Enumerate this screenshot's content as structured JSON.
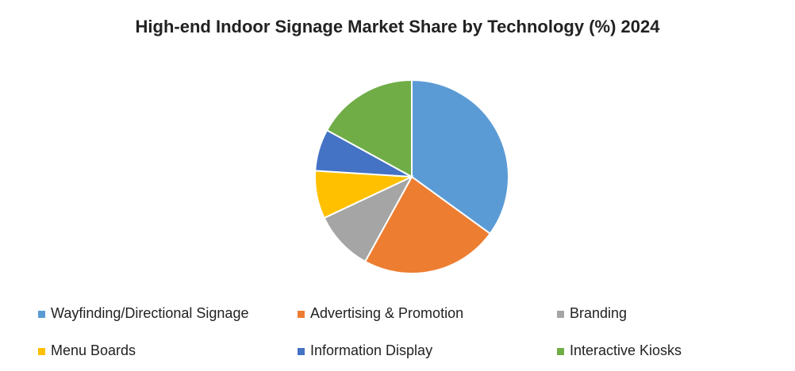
{
  "chart_data": {
    "type": "pie",
    "title": "High-end Indoor Signage Market Share by Technology (%) 2024",
    "categories": [
      "Wayfinding/Directional Signage",
      "Advertising & Promotion",
      "Branding",
      "Menu Boards",
      "Information Display",
      "Interactive Kiosks"
    ],
    "values": [
      35,
      23,
      10,
      8,
      7,
      17
    ],
    "colors": [
      "#5b9bd5",
      "#ed7d31",
      "#a5a5a5",
      "#ffc000",
      "#4472c4",
      "#70ad47"
    ],
    "legend": "bottom"
  }
}
